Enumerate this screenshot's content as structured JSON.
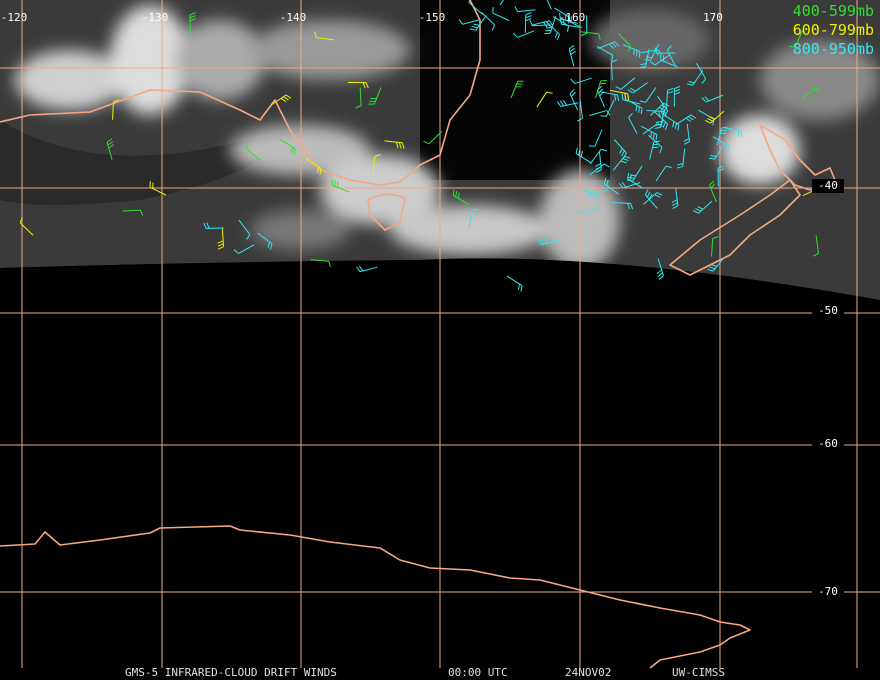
{
  "map": {
    "longitude_labels": [
      "-120",
      "-130",
      "-140",
      "-150",
      "-160",
      "170"
    ],
    "latitude_labels": [
      "-40",
      "-50",
      "-60",
      "-70"
    ],
    "legend": [
      "400-599mb",
      "600-799mb",
      "800-950mb"
    ],
    "footer": [
      "GMS-5 INFRARED-CLOUD DRIFT WINDS",
      "00:00 UTC",
      "24NOV02",
      "UW-CIMSS"
    ]
  }
}
